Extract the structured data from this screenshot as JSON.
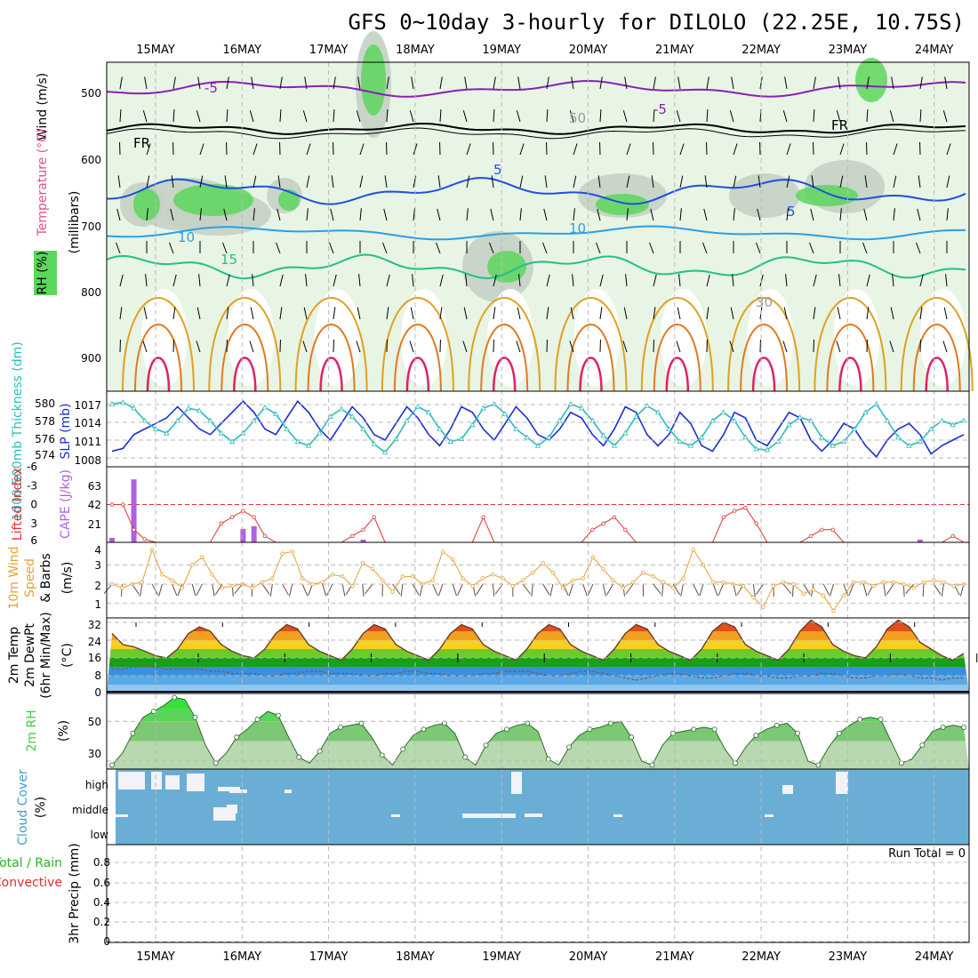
{
  "title": "GFS 0~10day 3-hourly for DILOLO (22.25E, 10.75S)",
  "dates": [
    "15MAY",
    "16MAY",
    "17MAY",
    "18MAY",
    "19MAY",
    "20MAY",
    "21MAY",
    "22MAY",
    "23MAY",
    "24MAY"
  ],
  "colors": {
    "rh_green": "#5cd65c",
    "rh_light": "#e8f4e4",
    "rh_grey": "#c4d2c4",
    "t_m5": "#8a1fb8",
    "t_5": "#1f4fe0",
    "t_10": "#2aa0e8",
    "t_15": "#22c08a",
    "t_20": "#e0a020",
    "t_25": "#e07a20",
    "t_30": "#e0206a",
    "slp": "#1a2ed0",
    "thick": "#2abcbc",
    "li": "#e03030",
    "cape": "#b060e0",
    "wind": "#e8a030",
    "barb": "#6a4a3a",
    "rh2m": "#4cc94c",
    "cloud": "#6aaed6",
    "temp_hot": "#e0501a",
    "temp_warm": "#f3a020",
    "temp_mild": "#f7d020",
    "temp_cool_green": "#20b020",
    "temp_cold": "#3a90e0"
  },
  "panel1": {
    "ylabel": "(millibars)",
    "var_labels": [
      "Wind (m/s)",
      "Temperature (°C)",
      "RH (%)"
    ],
    "yticks": [
      "500",
      "600",
      "700",
      "800",
      "900"
    ],
    "contour_labels": [
      "-5",
      "FR",
      "5",
      "10",
      "15",
      "-5",
      "5",
      "10",
      "FR",
      "50",
      "30"
    ]
  },
  "panel2": {
    "label_left": "1000-500mb Thickness (dm)",
    "label_right": "SLP (mb)",
    "yticks_left": [
      "580",
      "578",
      "576",
      "574"
    ],
    "yticks_right": [
      "1017",
      "1014",
      "1011",
      "1008"
    ]
  },
  "panel3": {
    "label_left": "Lifted Index",
    "label_right": "CAPE (J/kg)",
    "yticks_left": [
      "-6",
      "-3",
      "0",
      "3",
      "6"
    ],
    "yticks_right": [
      "63",
      "42",
      "21"
    ]
  },
  "panel4": {
    "labels": [
      "10m Wind",
      "Speed",
      "& Barbs"
    ],
    "unit": "(m/s)",
    "yticks": [
      "4",
      "3",
      "2",
      "1"
    ]
  },
  "panel5": {
    "labels": [
      "2m Temp",
      "2m DewPt",
      "(6hr Min/Max)"
    ],
    "unit": "(°C)",
    "yticks": [
      "32",
      "24",
      "16",
      "8",
      "0"
    ]
  },
  "panel6": {
    "label": "2m RH",
    "unit": "(%)",
    "yticks": [
      "50",
      "30"
    ]
  },
  "panel7": {
    "label": "Cloud Cover",
    "unit": "(%)",
    "levels": [
      "high",
      "middle",
      "low"
    ]
  },
  "panel8": {
    "label_total": "Total / Rain",
    "label_conv": "Convective",
    "label_axis": "3hr Precip (mm)",
    "yticks": [
      "0.8",
      "0.6",
      "0.4",
      "0.2",
      "0"
    ],
    "run_total": "Run Total = 0"
  },
  "chart_data": [
    {
      "type": "line",
      "name": "SLP",
      "ylabel": "SLP (mb)",
      "ylim": [
        1007,
        1019
      ],
      "values": [
        1009,
        1009.5,
        1012,
        1013,
        1014,
        1015,
        1017,
        1015,
        1013,
        1012,
        1014,
        1016,
        1018,
        1016,
        1013,
        1012,
        1015,
        1018,
        1016,
        1013,
        1011,
        1014,
        1017,
        1015,
        1012,
        1011,
        1014,
        1017,
        1015,
        1012,
        1010,
        1013,
        1017,
        1016,
        1013,
        1011,
        1014,
        1017,
        1015,
        1012,
        1011,
        1013,
        1016,
        1015,
        1012,
        1010,
        1013,
        1017,
        1016,
        1012,
        1010,
        1012,
        1016,
        1014,
        1010,
        1009,
        1012,
        1016,
        1015,
        1011,
        1010,
        1013,
        1016,
        1015,
        1011,
        1009,
        1011,
        1014,
        1013,
        1010,
        1008,
        1011,
        1013,
        1014,
        1012,
        1008.5,
        1010,
        1011,
        1012
      ]
    },
    {
      "type": "line",
      "name": "1000-500mb Thickness",
      "ylabel": "Thickness (dm)",
      "ylim": [
        573,
        581
      ],
      "values": [
        580,
        580.2,
        579.5,
        578,
        577,
        576.5,
        578,
        579.5,
        579.2,
        578,
        576.5,
        575.5,
        576.5,
        578,
        579.6,
        578.8,
        577,
        575.5,
        575,
        576.5,
        578.5,
        579.4,
        578.5,
        577,
        575.2,
        574.2,
        575.8,
        578,
        579.7,
        579,
        577,
        575.5,
        575.8,
        577.5,
        579.5,
        580,
        578.8,
        577,
        576,
        575,
        576,
        578,
        580,
        579.5,
        578,
        576.2,
        575,
        576.5,
        578.5,
        579.8,
        579,
        577,
        575.5,
        575,
        576,
        578,
        579,
        578,
        576,
        574.6,
        574.5,
        575.5,
        577.5,
        578.4,
        578,
        576,
        575,
        575.5,
        577,
        579,
        580,
        578,
        576,
        575,
        575.5,
        577,
        578,
        577.5,
        578
      ]
    },
    {
      "type": "line",
      "name": "Lifted Index",
      "ylabel": "Lifted Index",
      "ylim": [
        6,
        -6
      ],
      "values": [
        0,
        0,
        4,
        5.5,
        6,
        6,
        6,
        6,
        6,
        6,
        3,
        2,
        1,
        2,
        5,
        6,
        6,
        6,
        6,
        6,
        6,
        6,
        5,
        4,
        2,
        6,
        6,
        6,
        6,
        6,
        6,
        6,
        6,
        6,
        2,
        6,
        6,
        6,
        6,
        6,
        6,
        6,
        6,
        6,
        4,
        3,
        2,
        4,
        6,
        6,
        6,
        6,
        6,
        6,
        6,
        6,
        2,
        1,
        0.5,
        3,
        6,
        6,
        6,
        6,
        5,
        4,
        4,
        6,
        6,
        6,
        6,
        6,
        6,
        6,
        6,
        6,
        6,
        5,
        6
      ]
    },
    {
      "type": "bar",
      "name": "CAPE",
      "ylabel": "CAPE (J/kg)",
      "ylim": [
        0,
        84
      ],
      "values": [
        5,
        0,
        70,
        0,
        0,
        0,
        0,
        0,
        0,
        0,
        0,
        0,
        15,
        18,
        0,
        0,
        0,
        0,
        0,
        0,
        0,
        0,
        0,
        3,
        0,
        0,
        0,
        0,
        0,
        0,
        0,
        0,
        0,
        0,
        0,
        0,
        0,
        0,
        0,
        0,
        0,
        0,
        0,
        0,
        0,
        0,
        0,
        0,
        0,
        0,
        0,
        0,
        0,
        0,
        0,
        0,
        0,
        0,
        0,
        0,
        0,
        0,
        0,
        0,
        0,
        0,
        0,
        0,
        0,
        0,
        0,
        0,
        0,
        0,
        3,
        0,
        0,
        0,
        0
      ]
    },
    {
      "type": "line",
      "name": "10m Wind Speed",
      "ylabel": "(m/s)",
      "ylim": [
        0,
        4
      ],
      "values": [
        2,
        1.8,
        2,
        2.1,
        3.8,
        2.5,
        2.2,
        1.8,
        3,
        3.4,
        2.5,
        1.8,
        1.9,
        2,
        1.8,
        2.1,
        2.3,
        3.6,
        3.7,
        2.3,
        2,
        2.1,
        2.5,
        2.4,
        1.9,
        3.1,
        2.8,
        2.2,
        1.6,
        2.4,
        2.4,
        2,
        2.2,
        3.7,
        3.3,
        2.3,
        1.9,
        2.3,
        2.5,
        2.3,
        1.9,
        2.2,
        2.6,
        3.1,
        2.6,
        1.8,
        2.2,
        2.3,
        3.4,
        2.8,
        2.2,
        1.8,
        2.1,
        2.6,
        2.4,
        2.1,
        1.8,
        2.3,
        3.8,
        3,
        2.1,
        2.1,
        2,
        1.9,
        1.3,
        0.8,
        1.9,
        2.1,
        2,
        1.5,
        1.7,
        1.4,
        0.6,
        1.4,
        2.1,
        2.1,
        1.9,
        2.1,
        2.1,
        2,
        1.8,
        2.1,
        2.2,
        2.1,
        1.9,
        2
      ]
    },
    {
      "type": "area",
      "name": "2m Temp",
      "ylabel": "(°C)",
      "ylim": [
        0,
        34
      ],
      "values": [
        27,
        22,
        21,
        19,
        17,
        16,
        20,
        27,
        30,
        28,
        22,
        19,
        17,
        16,
        20,
        27,
        31,
        29,
        22,
        19,
        17,
        15,
        20,
        27,
        31,
        29,
        22,
        19,
        17,
        15,
        20,
        27,
        31,
        29,
        22,
        19,
        17,
        15,
        20,
        27,
        31,
        29,
        22,
        19,
        17,
        15,
        20,
        27,
        31,
        29,
        22,
        19,
        17,
        15,
        20,
        28,
        32,
        30,
        22,
        19,
        17,
        15,
        20,
        28,
        33,
        30,
        22,
        19,
        17,
        16,
        21,
        29,
        33,
        30,
        23,
        20,
        17,
        15,
        18
      ]
    },
    {
      "type": "line",
      "name": "2m DewPt",
      "ylabel": "(°C)",
      "ylim": [
        0,
        34
      ],
      "values": [
        11,
        11,
        12,
        12,
        12,
        11,
        11,
        11,
        11,
        10,
        10,
        9,
        9,
        9,
        8,
        8,
        9,
        9,
        10,
        10,
        9,
        9,
        9,
        8,
        8,
        9,
        9,
        10,
        10,
        9,
        9,
        8,
        8,
        8,
        9,
        9,
        10,
        10,
        10,
        9,
        8,
        8,
        9,
        10,
        10,
        9,
        8,
        7,
        6,
        7,
        8,
        9,
        9,
        8,
        7,
        7,
        8,
        9,
        9,
        8,
        8,
        7,
        7,
        8,
        8,
        9,
        9,
        8,
        7,
        7,
        8,
        8,
        9,
        8,
        7,
        7,
        6,
        7,
        7
      ]
    },
    {
      "type": "area",
      "name": "2m RH",
      "ylabel": "(%)",
      "ylim": [
        26,
        64
      ],
      "values": [
        28,
        34,
        44,
        52,
        55,
        58,
        62,
        61,
        52,
        38,
        29,
        34,
        42,
        46,
        51,
        55,
        53,
        42,
        32,
        29,
        35,
        44,
        47,
        48,
        49,
        42,
        33,
        28,
        36,
        43,
        46,
        48,
        49,
        44,
        32,
        28,
        38,
        44,
        46,
        48,
        49,
        45,
        31,
        28,
        37,
        43,
        46,
        47,
        49,
        50,
        42,
        30,
        28,
        38,
        44,
        45,
        46,
        47,
        46,
        36,
        29,
        37,
        43,
        46,
        48,
        49,
        44,
        30,
        28,
        37,
        44,
        48,
        51,
        52,
        51,
        40,
        29,
        31,
        38,
        45,
        47,
        48,
        47
      ]
    }
  ]
}
